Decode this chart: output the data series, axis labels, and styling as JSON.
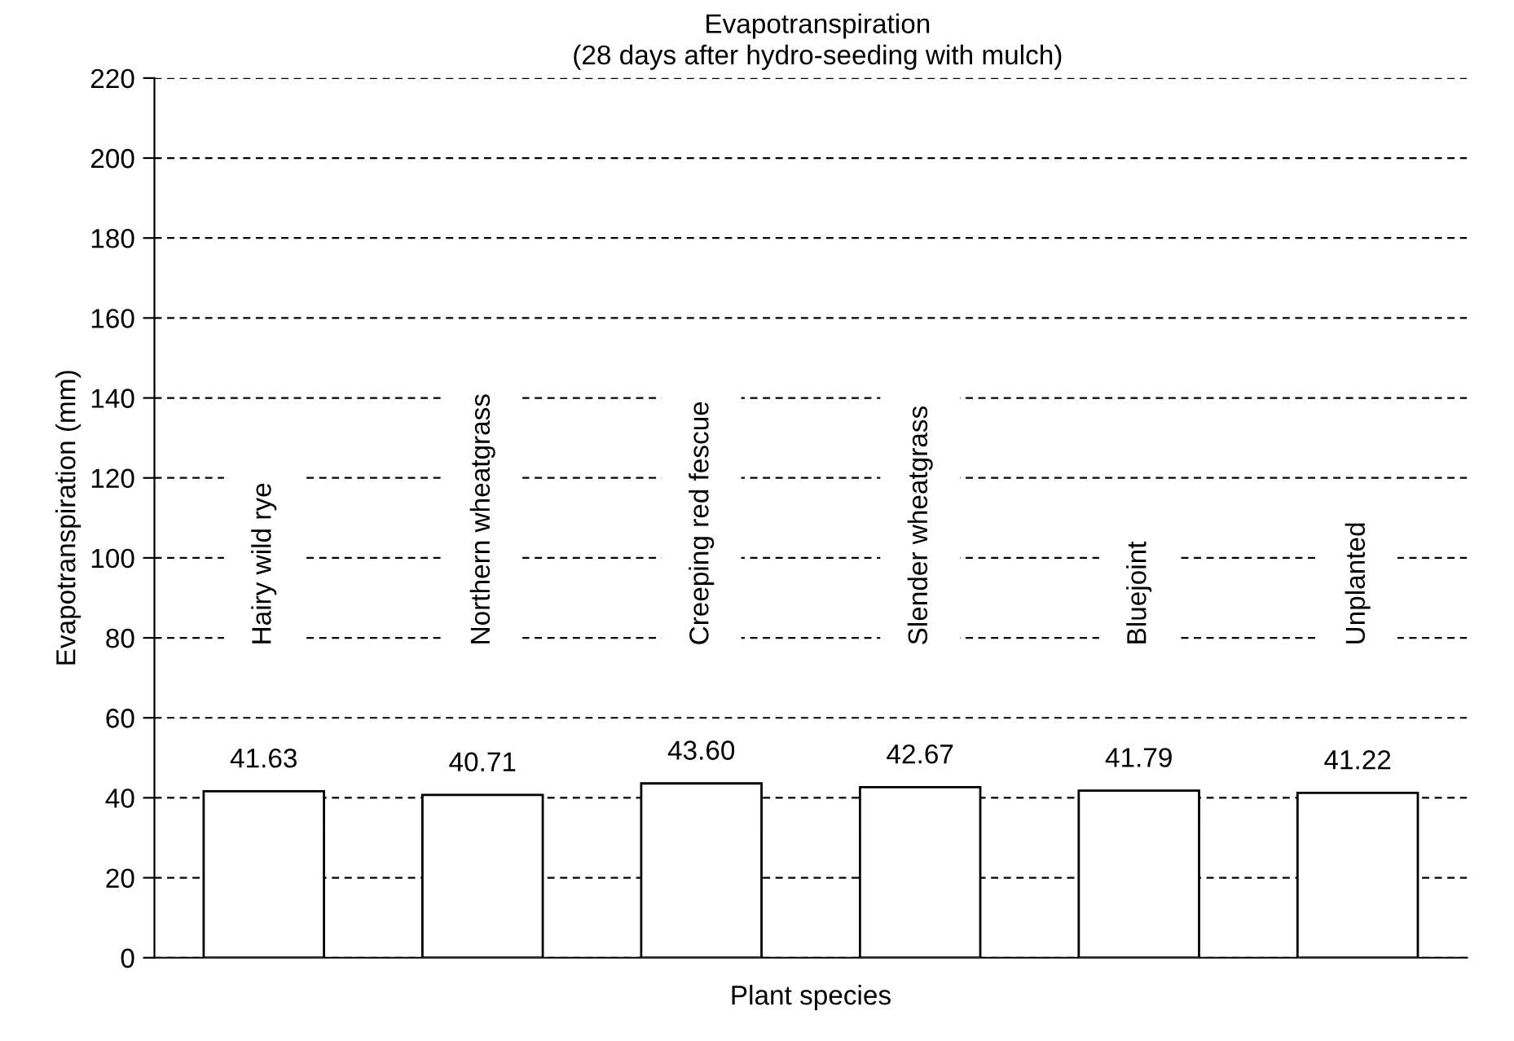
{
  "chart_data": {
    "type": "bar",
    "title": "Evapotranspiration",
    "subtitle": "(28 days after hydro-seeding with mulch)",
    "xlabel": "Plant species",
    "ylabel": "Evapotranspiration (mm)",
    "categories": [
      "Hairy wild rye",
      "Northern wheatgrass",
      "Creeping red fescue",
      "Slender wheatgrass",
      "Bluejoint",
      "Unplanted"
    ],
    "values": [
      41.63,
      40.71,
      43.6,
      42.67,
      41.79,
      41.22
    ],
    "value_labels": [
      "41.63",
      "40.71",
      "43.60",
      "42.67",
      "41.79",
      "41.22"
    ],
    "color": "#ffffff",
    "ylim": [
      0,
      220
    ],
    "yticks": [
      0,
      20,
      40,
      60,
      80,
      100,
      120,
      140,
      160,
      180,
      200,
      220
    ],
    "grid": "y",
    "line_style": "dashed"
  }
}
